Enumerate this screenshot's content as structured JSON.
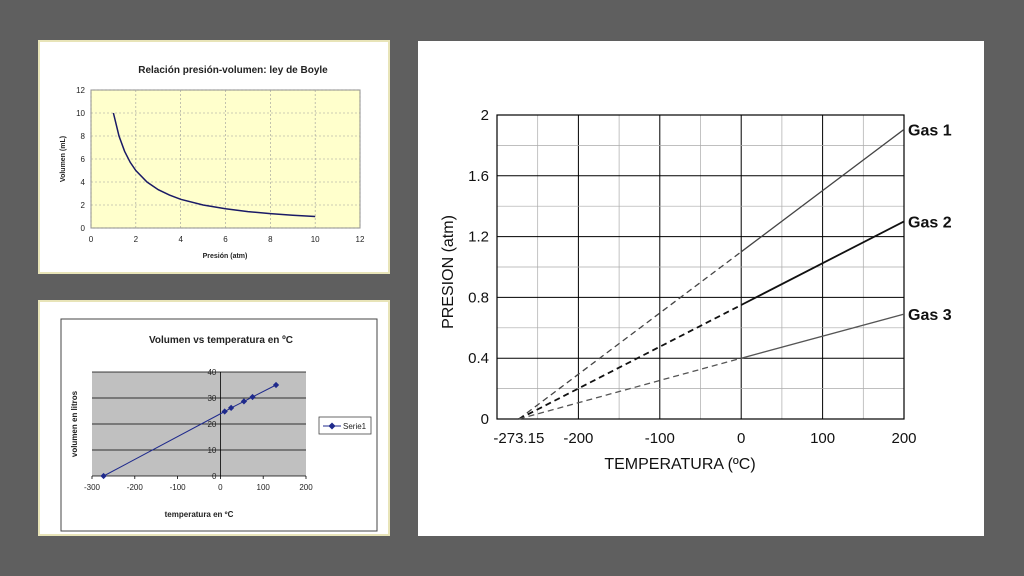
{
  "colors": {
    "background": "#5f5f5f",
    "boyle_plot_bg": "#ffffcc",
    "boyle_line": "#1a1a66",
    "charles_plot_bg": "#c0c0c0",
    "charles_line": "#1f2a8c"
  },
  "chart_data": [
    {
      "type": "line",
      "title": "Relación presión-volumen: ley de Boyle",
      "xlabel": "Presión (atm)",
      "ylabel": "Volumen (mL)",
      "xlim": [
        0,
        12
      ],
      "ylim": [
        0,
        12
      ],
      "x_ticks": [
        "0",
        "2",
        "4",
        "6",
        "8",
        "10",
        "12"
      ],
      "y_ticks": [
        "0",
        "2",
        "4",
        "6",
        "8",
        "10",
        "12"
      ],
      "grid": true,
      "series": [
        {
          "x": [
            1,
            1.25,
            1.5,
            1.75,
            2,
            2.5,
            3,
            3.5,
            4,
            5,
            6,
            7,
            8,
            9,
            10
          ],
          "values": [
            10,
            8,
            6.67,
            5.71,
            5,
            4,
            3.33,
            2.86,
            2.5,
            2,
            1.67,
            1.43,
            1.25,
            1.11,
            1
          ]
        }
      ]
    },
    {
      "type": "scatter",
      "title": "Volumen vs temperatura en ºC",
      "xlabel": "temperatura en ºC",
      "ylabel": "volumen en litros",
      "xlim": [
        -300,
        200
      ],
      "ylim": [
        0,
        40
      ],
      "x_ticks": [
        "-300",
        "-200",
        "-100",
        "0",
        "100",
        "200"
      ],
      "y_ticks": [
        "0",
        "10",
        "20",
        "30",
        "40"
      ],
      "grid": true,
      "legend_position": "right",
      "series": [
        {
          "name": "Serie1",
          "x": [
            -273,
            10,
            25,
            55,
            75,
            130
          ],
          "values": [
            0,
            24.8,
            26.2,
            28.7,
            30.4,
            35
          ]
        }
      ]
    },
    {
      "type": "line",
      "title": "",
      "xlabel": "TEMPERATURA (ºC)",
      "ylabel": "PRESION (atm)",
      "xlim": [
        -300,
        200
      ],
      "ylim": [
        0,
        2
      ],
      "x_ticks": [
        "-273.15",
        "-200",
        "-100",
        "0",
        "100",
        "200"
      ],
      "y_ticks": [
        "0",
        "0.4",
        "0.8",
        "1.2",
        "1.6",
        "2"
      ],
      "grid": true,
      "extrapolated_style": "dashed for T < 0",
      "series": [
        {
          "name": "Gas 1",
          "x": [
            -273.15,
            0,
            200
          ],
          "values": [
            0,
            1.1,
            1.905
          ]
        },
        {
          "name": "Gas 2",
          "x": [
            -273.15,
            0,
            200
          ],
          "values": [
            0,
            0.75,
            1.3
          ]
        },
        {
          "name": "Gas 3",
          "x": [
            -273.15,
            0,
            200
          ],
          "values": [
            0,
            0.4,
            0.69
          ]
        }
      ]
    }
  ]
}
